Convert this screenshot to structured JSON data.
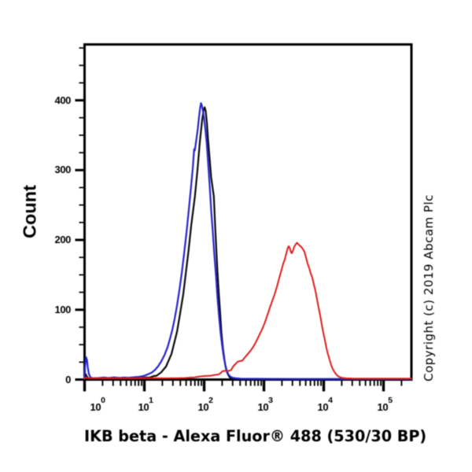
{
  "figure": {
    "background_color": "#ffffff",
    "copyright": "Copyright (c) 2019 Abcam Plc"
  },
  "chart_data": {
    "type": "line",
    "subtype": "flow-cytometry-histogram-overlay",
    "title": "",
    "xlabel": "IKB beta - Alexa Fluor® 488 (530/30 BP)",
    "ylabel": "Count",
    "x_scale": "log10",
    "xlim": [
      1,
      293000
    ],
    "ylim": [
      0,
      480
    ],
    "grid": false,
    "legend": null,
    "x_axis": {
      "major_ticks": [
        {
          "base": "10",
          "exp": "0",
          "value": 1
        },
        {
          "base": "10",
          "exp": "1",
          "value": 10
        },
        {
          "base": "10",
          "exp": "2",
          "value": 100
        },
        {
          "base": "10",
          "exp": "3",
          "value": 1000
        },
        {
          "base": "10",
          "exp": "4",
          "value": 10000
        },
        {
          "base": "10",
          "exp": "5",
          "value": 100000
        }
      ],
      "minor_tick_pattern": [
        2,
        3,
        4,
        5,
        6,
        7,
        8,
        9
      ]
    },
    "y_axis": {
      "major_tick_values": [
        0,
        100,
        200,
        300,
        400
      ],
      "major_tick_labels": [
        "0",
        "100",
        "200",
        "300",
        "400"
      ],
      "minor_tick_interval": 25
    },
    "series": [
      {
        "name": "black",
        "color": "#0a0a0a",
        "width": 2.2,
        "points": [
          [
            0.985,
            0.5
          ],
          [
            1.02,
            6
          ],
          [
            1.05,
            7.5
          ],
          [
            1.08,
            5
          ],
          [
            1.15,
            2
          ],
          [
            1.26,
            1.3
          ],
          [
            1.7,
            1.2
          ],
          [
            2.68,
            1.5
          ],
          [
            3.62,
            1.2
          ],
          [
            4.91,
            1.8
          ],
          [
            6.64,
            1.5
          ],
          [
            8.47,
            1.7
          ],
          [
            10.5,
            3
          ],
          [
            12.2,
            2.8
          ],
          [
            14.2,
            5
          ],
          [
            16.0,
            5.5
          ],
          [
            19.2,
            10.5
          ],
          [
            23.0,
            18.6
          ],
          [
            28.4,
            36.7
          ],
          [
            35.2,
            68.4
          ],
          [
            39.7,
            95
          ],
          [
            44.8,
            122.6
          ],
          [
            49.8,
            155
          ],
          [
            55.1,
            185.9
          ],
          [
            60.7,
            220
          ],
          [
            70.2,
            262.7
          ],
          [
            77.3,
            300
          ],
          [
            84.7,
            340
          ],
          [
            92.7,
            372
          ],
          [
            98.5,
            387
          ],
          [
            102.0,
            390
          ],
          [
            106.0,
            385
          ],
          [
            111.0,
            368
          ],
          [
            116.0,
            345
          ],
          [
            124.0,
            315
          ],
          [
            131.0,
            290
          ],
          [
            140.0,
            272
          ],
          [
            145.0,
            262.7
          ],
          [
            153.0,
            220
          ],
          [
            160.0,
            185.9
          ],
          [
            167.0,
            155
          ],
          [
            176.0,
            122.6
          ],
          [
            186.0,
            93
          ],
          [
            194.0,
            68.4
          ],
          [
            206.0,
            45
          ],
          [
            219.0,
            27.7
          ],
          [
            230.0,
            17
          ],
          [
            244.0,
            9.6
          ],
          [
            260.0,
            5
          ],
          [
            276.0,
            2
          ],
          [
            302.0,
            1
          ],
          [
            625.0,
            0.8
          ],
          [
            3850.0,
            0.8
          ],
          [
            32100.0,
            0.8
          ],
          [
            293000.0,
            0.8
          ]
        ]
      },
      {
        "name": "blue",
        "color": "#2424cd",
        "width": 2.2,
        "points": [
          [
            0.985,
            1
          ],
          [
            1.02,
            20
          ],
          [
            1.06,
            32
          ],
          [
            1.1,
            28
          ],
          [
            1.13,
            18
          ],
          [
            1.18,
            8
          ],
          [
            1.26,
            3
          ],
          [
            1.37,
            2
          ],
          [
            1.7,
            2.2
          ],
          [
            2.1,
            3
          ],
          [
            2.52,
            2.2
          ],
          [
            3.11,
            3.2
          ],
          [
            3.85,
            2.5
          ],
          [
            4.62,
            3
          ],
          [
            5.37,
            2.6
          ],
          [
            6.25,
            3.2
          ],
          [
            7.06,
            3.5
          ],
          [
            7.97,
            3.8
          ],
          [
            9.56,
            5
          ],
          [
            11.5,
            7.5
          ],
          [
            13.3,
            10
          ],
          [
            15.1,
            14
          ],
          [
            17.0,
            19
          ],
          [
            19.2,
            26
          ],
          [
            21.7,
            35
          ],
          [
            24.4,
            46
          ],
          [
            26.8,
            58
          ],
          [
            29.3,
            71
          ],
          [
            32.1,
            87
          ],
          [
            35.2,
            106
          ],
          [
            38.5,
            128
          ],
          [
            42.2,
            152
          ],
          [
            46.2,
            180
          ],
          [
            50.6,
            210
          ],
          [
            55.4,
            243
          ],
          [
            60.7,
            278
          ],
          [
            64.4,
            302
          ],
          [
            66.4,
            318
          ],
          [
            68.1,
            330
          ],
          [
            69.7,
            328
          ],
          [
            71.4,
            334
          ],
          [
            75.0,
            347
          ],
          [
            78.5,
            360
          ],
          [
            82.1,
            376
          ],
          [
            85.9,
            390
          ],
          [
            88.6,
            396
          ],
          [
            91.3,
            393
          ],
          [
            95.6,
            385
          ],
          [
            100.0,
            374
          ],
          [
            105.0,
            358
          ],
          [
            110.0,
            340
          ],
          [
            115.0,
            318
          ],
          [
            120.0,
            295
          ],
          [
            126.0,
            268
          ],
          [
            131.0,
            243
          ],
          [
            140.0,
            210
          ],
          [
            148.0,
            180
          ],
          [
            158.0,
            148
          ],
          [
            167.0,
            118
          ],
          [
            178.0,
            90
          ],
          [
            189.0,
            66
          ],
          [
            201.0,
            47
          ],
          [
            213.0,
            32
          ],
          [
            227.0,
            20
          ],
          [
            241.0,
            12
          ],
          [
            256.0,
            7
          ],
          [
            276.0,
            4
          ],
          [
            302.0,
            2.5
          ],
          [
            341.0,
            1.8
          ],
          [
            409.0,
            1.2
          ],
          [
            1180.0,
            1
          ],
          [
            3850,
            0.8
          ],
          [
            293000,
            0.8
          ]
        ]
      },
      {
        "name": "red",
        "color": "#dd1d1d",
        "width": 2.0,
        "points": [
          [
            0.985,
            2
          ],
          [
            1.08,
            2.5
          ],
          [
            1.15,
            2
          ],
          [
            1.46,
            1.8
          ],
          [
            2.3,
            2
          ],
          [
            3.62,
            1.8
          ],
          [
            6.64,
            1.8
          ],
          [
            12.2,
            2
          ],
          [
            22.3,
            1.8
          ],
          [
            35.2,
            2
          ],
          [
            47.6,
            2.2
          ],
          [
            58.8,
            2.8
          ],
          [
            68.5,
            3.2
          ],
          [
            79.7,
            4
          ],
          [
            95.6,
            5
          ],
          [
            111.0,
            5.2
          ],
          [
            129.0,
            5.5
          ],
          [
            146.0,
            6.5
          ],
          [
            165.0,
            7
          ],
          [
            181.0,
            8
          ],
          [
            192.0,
            10
          ],
          [
            204.0,
            12
          ],
          [
            223.0,
            12.5
          ],
          [
            252.0,
            12.2
          ],
          [
            268.0,
            13
          ],
          [
            284.0,
            14
          ],
          [
            302.0,
            18
          ],
          [
            321.0,
            21
          ],
          [
            341.0,
            23
          ],
          [
            362.0,
            25.5
          ],
          [
            397.0,
            26.5
          ],
          [
            435.0,
            27
          ],
          [
            462.0,
            30
          ],
          [
            506.0,
            34
          ],
          [
            554.0,
            38
          ],
          [
            607.0,
            42
          ],
          [
            664.0,
            47
          ],
          [
            728.0,
            53
          ],
          [
            797.0,
            60
          ],
          [
            873.0,
            67
          ],
          [
            956.0,
            74
          ],
          [
            1050.0,
            83
          ],
          [
            1150.0,
            93
          ],
          [
            1260.0,
            103
          ],
          [
            1370.0,
            112
          ],
          [
            1510.0,
            122
          ],
          [
            1650.0,
            133
          ],
          [
            1810.0,
            146
          ],
          [
            1980.0,
            158
          ],
          [
            2100.0,
            166
          ],
          [
            2230.0,
            172
          ],
          [
            2370.0,
            181
          ],
          [
            2520.0,
            189
          ],
          [
            2600.0,
            191
          ],
          [
            2720.0,
            188
          ],
          [
            2840.0,
            182
          ],
          [
            2930.0,
            181
          ],
          [
            3070.0,
            185
          ],
          [
            3210.0,
            190
          ],
          [
            3410.0,
            194
          ],
          [
            3570.0,
            196
          ],
          [
            3740.0,
            194
          ],
          [
            3970.0,
            192
          ],
          [
            4220.0,
            190
          ],
          [
            4480.0,
            187
          ],
          [
            4760.0,
            183
          ],
          [
            5060.0,
            175
          ],
          [
            5370.0,
            166
          ],
          [
            5710.0,
            160
          ],
          [
            6070.0,
            152
          ],
          [
            6440.0,
            146
          ],
          [
            6850.0,
            136
          ],
          [
            7280.0,
            127
          ],
          [
            7730.0,
            115
          ],
          [
            8210.0,
            103
          ],
          [
            8730.0,
            92
          ],
          [
            9270.0,
            79
          ],
          [
            9850.0,
            67
          ],
          [
            10500.0,
            56
          ],
          [
            11100.0,
            45
          ],
          [
            11800.0,
            36
          ],
          [
            12600.0,
            28
          ],
          [
            13300.0,
            21
          ],
          [
            14200.0,
            15
          ],
          [
            15100.0,
            11
          ],
          [
            16000.0,
            8
          ],
          [
            17000.0,
            5.5
          ],
          [
            18100.0,
            4
          ],
          [
            19200.0,
            3
          ],
          [
            21000.0,
            2.2
          ],
          [
            23700.0,
            1.8
          ],
          [
            32100.0,
            1.5
          ],
          [
            58800.0,
            1.5
          ],
          [
            146000.0,
            1.5
          ],
          [
            293000.0,
            1.5
          ]
        ]
      }
    ]
  }
}
